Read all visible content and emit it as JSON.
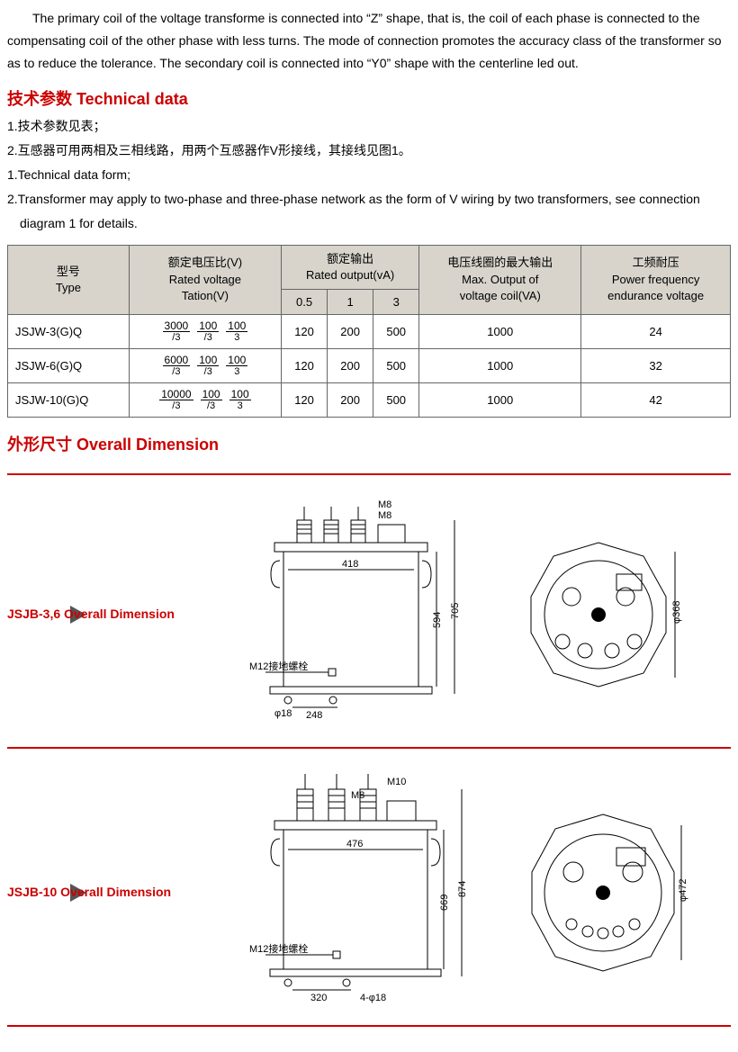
{
  "intro": "The primary coil of the voltage transforme is connected into “Z” shape, that is, the coil of each phase is connected to the compensating coil of the other phase with less turns. The mode of connection promotes the accuracy class of the transformer so as to reduce the tolerance. The secondary coil is connected into “Y0” shape with the centerline led out.",
  "section1_title": "技术参数  Technical data",
  "notes": {
    "n1": "1.技术参数见表；",
    "n2": "2.互感器可用两相及三相线路，用两个互感器作V形接线，其接线见图1。",
    "n3": "1.Technical data form;",
    "n4": "2.Transformer may apply to two-phase and three-phase network as the form of V wiring by two transformers, see connection",
    "n5": "diagram 1 for details."
  },
  "table": {
    "headers": {
      "type_cn": "型号",
      "type_en": "Type",
      "rv_cn": "额定电压比(V)",
      "rv_en": "Rated voltage",
      "rv_en2": "Tation(V)",
      "ro_cn": "额定输出",
      "ro_en": "Rated output(vA)",
      "ro_sub1": "0.5",
      "ro_sub2": "1",
      "ro_sub3": "3",
      "max_cn": "电压线圈的最大输出",
      "max_en": "Max. Output of",
      "max_en2": "voltage coil(VA)",
      "pf_cn": "工频耐压",
      "pf_en": "Power frequency",
      "pf_en2": "endurance voltage"
    },
    "rows": [
      {
        "type": "JSJW-3(G)Q",
        "ratio": {
          "v1": "3000",
          "d1": "/3",
          "v2": "100",
          "d2": "/3",
          "v3": "100",
          "d3": "3"
        },
        "o1": "120",
        "o2": "200",
        "o3": "500",
        "max": "1000",
        "pf": "24"
      },
      {
        "type": "JSJW-6(G)Q",
        "ratio": {
          "v1": "6000",
          "d1": "/3",
          "v2": "100",
          "d2": "/3",
          "v3": "100",
          "d3": "3"
        },
        "o1": "120",
        "o2": "200",
        "o3": "500",
        "max": "1000",
        "pf": "32"
      },
      {
        "type": "JSJW-10(G)Q",
        "ratio": {
          "v1": "10000",
          "d1": "/3",
          "v2": "100",
          "d2": "/3",
          "v3": "100",
          "d3": "3"
        },
        "o1": "120",
        "o2": "200",
        "o3": "500",
        "max": "1000",
        "pf": "42"
      }
    ]
  },
  "section2_title": "外形尺寸  Overall Dimension",
  "dim1": {
    "label": "JSJB-3,6 Overall Dimension",
    "labels": {
      "m8a": "M8",
      "m8b": "M8",
      "w1": "418",
      "h1": "594",
      "h2": "705",
      "gnd": "M12接地螺栓",
      "d1": "φ18",
      "w2": "248",
      "dia": "φ368"
    }
  },
  "dim2": {
    "label": "JSJB-10 Overall Dimension",
    "labels": {
      "m10": "M10",
      "m8": "M8",
      "w1": "476",
      "h1": "669",
      "h2": "874",
      "gnd": "M12接地螺栓",
      "d1": "4-φ18",
      "w2": "320",
      "dia": "φ472"
    }
  },
  "colors": {
    "accent": "#cc0000",
    "border": "#666",
    "headerbg": "#d8d4cc"
  }
}
